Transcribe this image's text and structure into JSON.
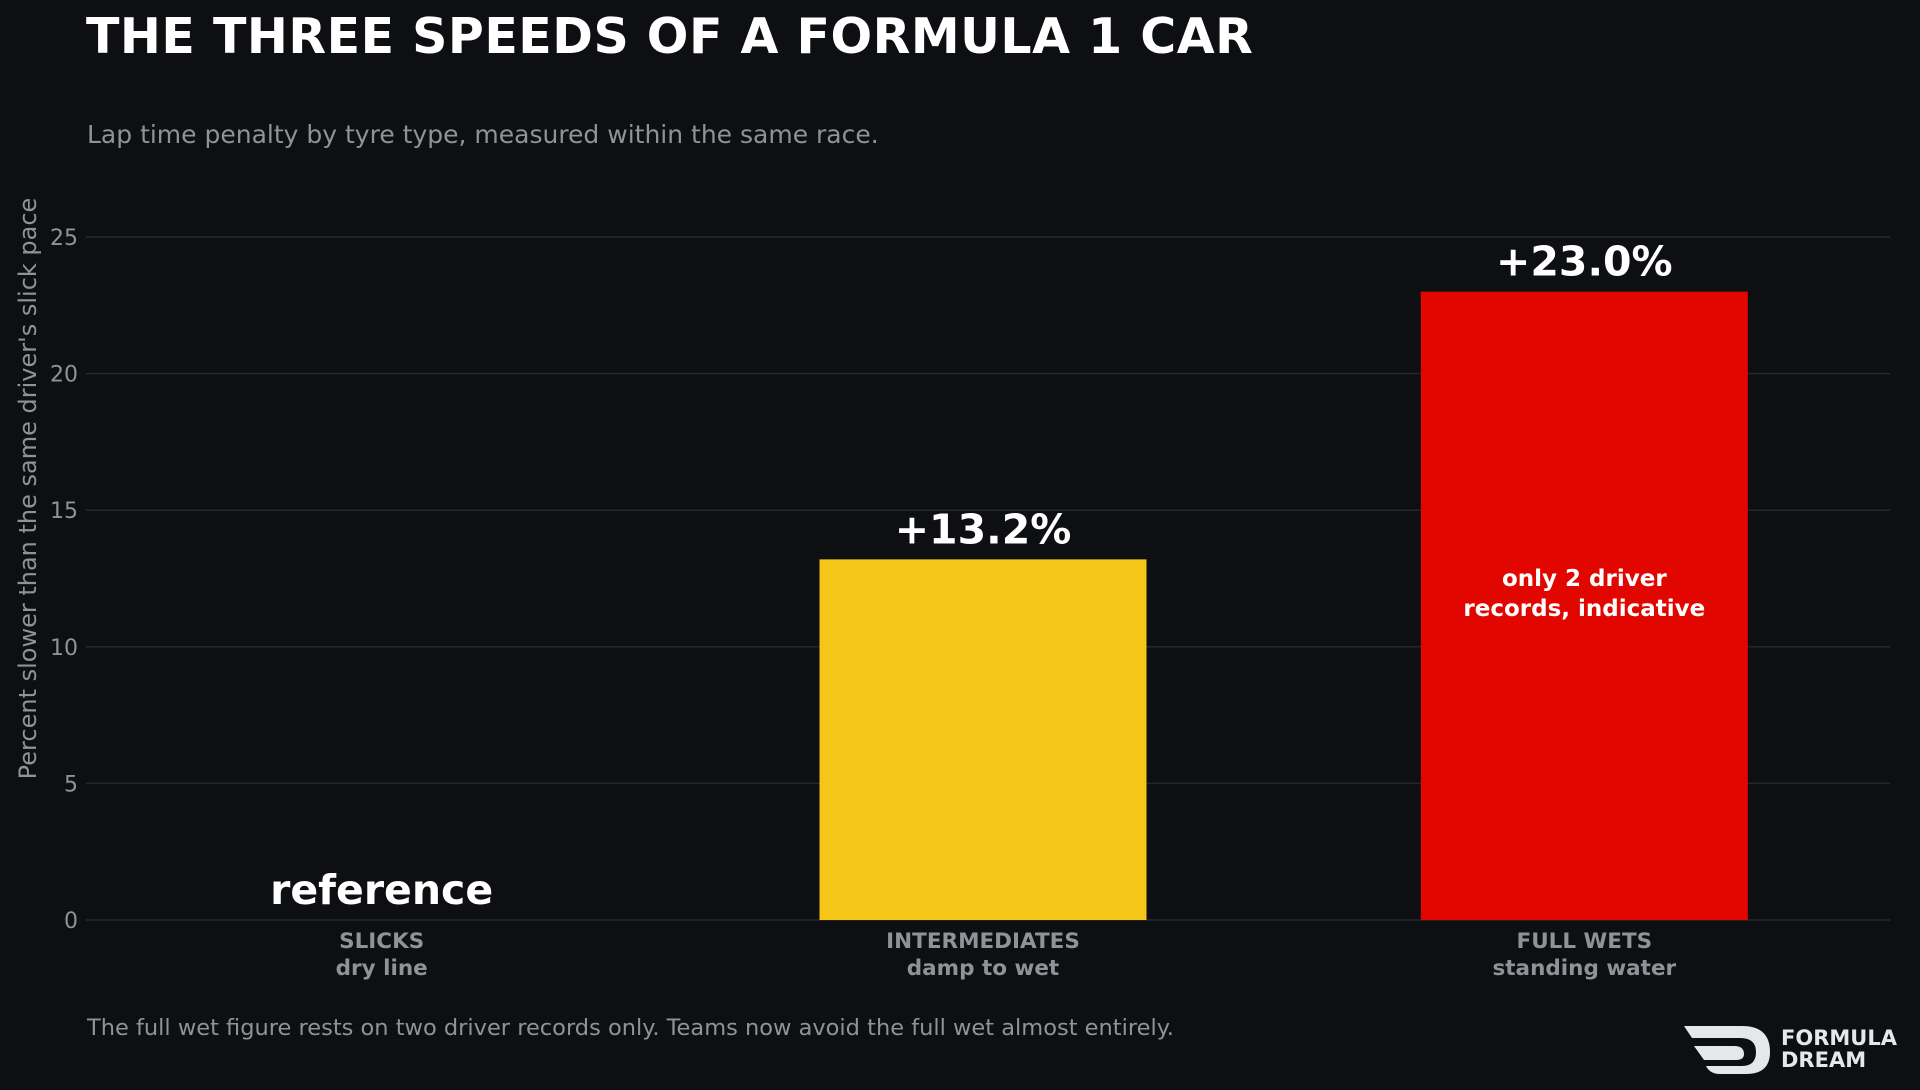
{
  "header": {
    "title": "THE THREE SPEEDS OF A FORMULA 1 CAR",
    "subtitle": "Lap time penalty by tyre type, measured within the same race."
  },
  "footer": {
    "note": "The full wet figure rests on two driver records only. Teams now avoid the full wet almost entirely.",
    "logo_line1": "FORMULA",
    "logo_line2": "DREAM"
  },
  "chart_data": {
    "type": "bar",
    "categories": [
      "SLICKS",
      "INTERMEDIATES",
      "FULL WETS"
    ],
    "category_sublabels": [
      "dry line",
      "damp to wet",
      "standing water"
    ],
    "values": [
      0,
      13.2,
      23.0
    ],
    "value_labels": [
      "reference",
      "+13.2%",
      "+23.0%"
    ],
    "bar_annotations": [
      "",
      "",
      "only 2 driver records, indicative"
    ],
    "bar_colors": [
      "#0e0f12",
      "#f5c518",
      "#e10600"
    ],
    "ylabel": "Percent slower than the same driver's slick pace",
    "ylim": [
      0,
      25
    ],
    "yticks": [
      0,
      5,
      10,
      15,
      20,
      25
    ],
    "grid": true
  }
}
